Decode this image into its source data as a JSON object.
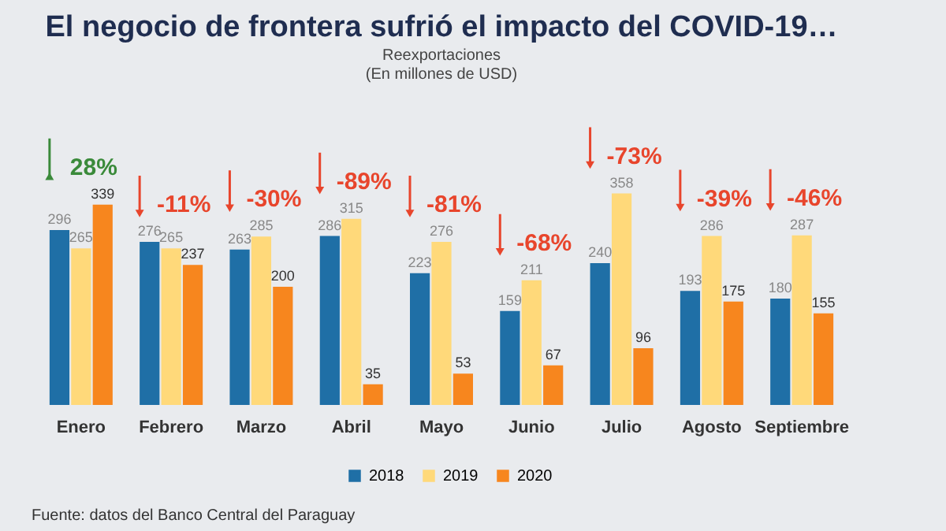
{
  "chart_data": {
    "type": "bar",
    "title": "El negocio de frontera sufrió el impacto del COVID-19…",
    "subtitle": "Reexportaciones\n(En millones de USD)",
    "categories": [
      "Enero",
      "Febrero",
      "Marzo",
      "Abril",
      "Mayo",
      "Junio",
      "Julio",
      "Agosto",
      "Septiembre"
    ],
    "series": [
      {
        "name": "2018",
        "color": "#1f6fa6",
        "values": [
          296,
          276,
          263,
          286,
          223,
          159,
          240,
          193,
          180
        ]
      },
      {
        "name": "2019",
        "color": "#ffd97a",
        "values": [
          265,
          265,
          285,
          315,
          276,
          211,
          358,
          286,
          287
        ]
      },
      {
        "name": "2020",
        "color": "#f7861e",
        "values": [
          339,
          237,
          200,
          35,
          53,
          67,
          96,
          175,
          155
        ]
      }
    ],
    "data_labels": true,
    "legend": "bottom",
    "grid": false,
    "annotations": [
      "28%",
      "-11%",
      "-30%",
      "-89%",
      "-81%",
      "-68%",
      "-73%",
      "-39%",
      "-46%",
      "Fuente: datos del Banco Central del Paraguay"
    ]
  }
}
